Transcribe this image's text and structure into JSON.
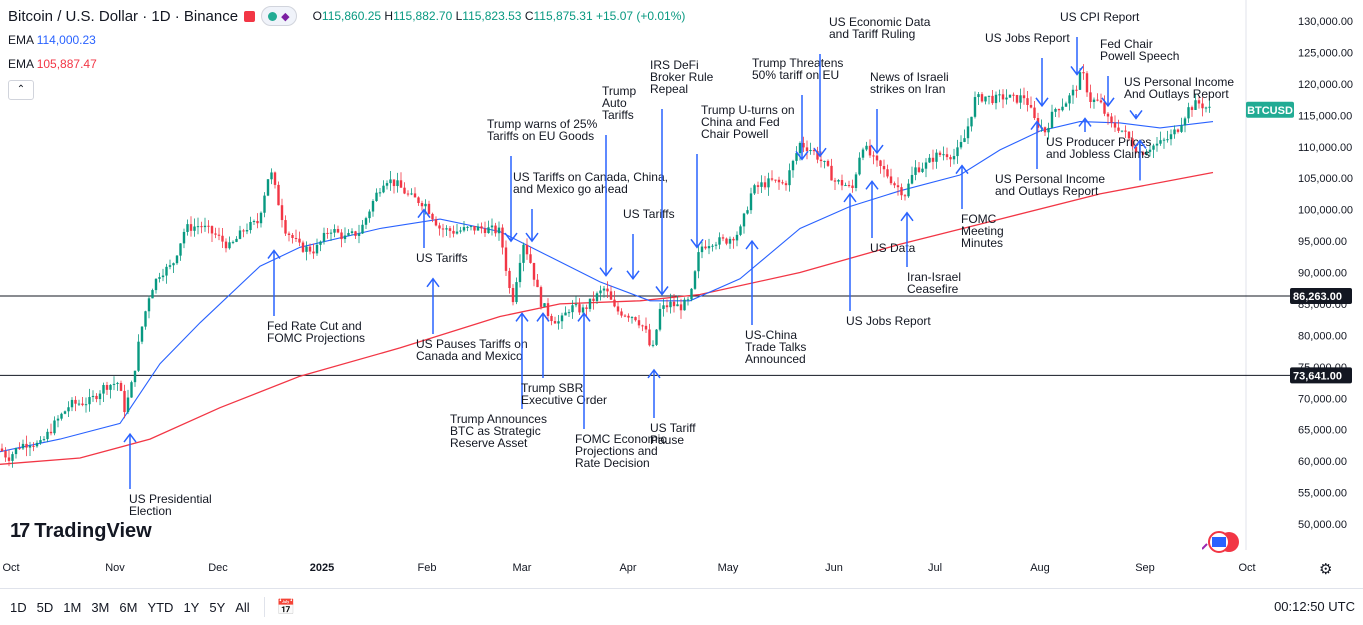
{
  "header": {
    "title": "Bitcoin / U.S. Dollar · 1D · Binance",
    "ohlc": {
      "open_label": "O",
      "open": "115,860.25",
      "high_label": "H",
      "high": "115,882.70",
      "low_label": "L",
      "low": "115,823.53",
      "close_label": "C",
      "close": "115,875.31",
      "change": "+15.07 (+0.01%)"
    }
  },
  "indicators": [
    {
      "label": "EMA",
      "value": "114,000.23",
      "color": "#2962ff"
    },
    {
      "label": "EMA",
      "value": "105,887.47",
      "color": "#f23645"
    }
  ],
  "logo": {
    "text": "TradingView",
    "mark": "17"
  },
  "bottom_bar": {
    "ranges": [
      "1D",
      "5D",
      "1M",
      "3M",
      "6M",
      "YTD",
      "1Y",
      "5Y",
      "All"
    ],
    "time": "00:12:50 UTC"
  },
  "chart_data": {
    "type": "candlestick",
    "symbol": "BTCUSD",
    "x_ticks": [
      "Oct",
      "Nov",
      "Dec",
      "2025",
      "Feb",
      "Mar",
      "Apr",
      "May",
      "Jun",
      "Jul",
      "Aug",
      "Sep",
      "Oct"
    ],
    "y_ticks": [
      "130,000.00",
      "125,000.00",
      "120,000.00",
      "115,000.00",
      "110,000.00",
      "105,000.00",
      "100,000.00",
      "95,000.00",
      "90,000.00",
      "85,000.00",
      "80,000.00",
      "75,000.00",
      "70,000.00",
      "65,000.00",
      "60,000.00",
      "55,000.00",
      "50,000.00"
    ],
    "ylim": [
      46000,
      133000
    ],
    "price_label": {
      "text": "BTCUSD",
      "value": 115875.31,
      "color": "#22ab94"
    },
    "horizontal_lines": [
      {
        "value": 86263,
        "label": "86,263.00"
      },
      {
        "value": 73641,
        "label": "73,641.00"
      }
    ],
    "price_path": [
      [
        0,
        62000
      ],
      [
        8,
        60500
      ],
      [
        20,
        62500
      ],
      [
        30,
        63000
      ],
      [
        40,
        62500
      ],
      [
        55,
        66000
      ],
      [
        70,
        69000
      ],
      [
        90,
        69500
      ],
      [
        105,
        72000
      ],
      [
        118,
        72500
      ],
      [
        125,
        68000
      ],
      [
        133,
        73000
      ],
      [
        140,
        80000
      ],
      [
        150,
        87000
      ],
      [
        160,
        90000
      ],
      [
        172,
        91000
      ],
      [
        185,
        97000
      ],
      [
        200,
        97500
      ],
      [
        215,
        96000
      ],
      [
        230,
        94000
      ],
      [
        245,
        97000
      ],
      [
        258,
        98000
      ],
      [
        270,
        106500
      ],
      [
        285,
        97000
      ],
      [
        300,
        94000
      ],
      [
        315,
        93500
      ],
      [
        330,
        97000
      ],
      [
        345,
        95500
      ],
      [
        360,
        96500
      ],
      [
        375,
        102000
      ],
      [
        385,
        105000
      ],
      [
        397,
        104000
      ],
      [
        410,
        102000
      ],
      [
        425,
        101000
      ],
      [
        440,
        97000
      ],
      [
        455,
        96500
      ],
      [
        470,
        97000
      ],
      [
        485,
        97000
      ],
      [
        500,
        96500
      ],
      [
        512,
        85000
      ],
      [
        523,
        95000
      ],
      [
        530,
        92000
      ],
      [
        540,
        85500
      ],
      [
        550,
        83000
      ],
      [
        560,
        82000
      ],
      [
        570,
        84500
      ],
      [
        583,
        84000
      ],
      [
        595,
        86000
      ],
      [
        605,
        87500
      ],
      [
        615,
        84000
      ],
      [
        625,
        83500
      ],
      [
        635,
        83000
      ],
      [
        645,
        81000
      ],
      [
        652,
        77000
      ],
      [
        660,
        84000
      ],
      [
        670,
        85000
      ],
      [
        680,
        84500
      ],
      [
        690,
        85500
      ],
      [
        700,
        94000
      ],
      [
        712,
        95000
      ],
      [
        725,
        95000
      ],
      [
        740,
        96500
      ],
      [
        752,
        103000
      ],
      [
        762,
        104000
      ],
      [
        772,
        104500
      ],
      [
        785,
        104000
      ],
      [
        800,
        110500
      ],
      [
        812,
        109500
      ],
      [
        825,
        107000
      ],
      [
        835,
        104500
      ],
      [
        845,
        104000
      ],
      [
        852,
        103000
      ],
      [
        862,
        110500
      ],
      [
        875,
        107500
      ],
      [
        885,
        106000
      ],
      [
        895,
        104000
      ],
      [
        905,
        102500
      ],
      [
        915,
        106500
      ],
      [
        925,
        107000
      ],
      [
        935,
        108500
      ],
      [
        945,
        109000
      ],
      [
        955,
        108500
      ],
      [
        965,
        111500
      ],
      [
        975,
        117500
      ],
      [
        985,
        118000
      ],
      [
        995,
        117500
      ],
      [
        1005,
        118000
      ],
      [
        1015,
        117500
      ],
      [
        1025,
        118000
      ],
      [
        1035,
        114000
      ],
      [
        1045,
        112500
      ],
      [
        1055,
        116000
      ],
      [
        1065,
        117000
      ],
      [
        1075,
        119000
      ],
      [
        1082,
        122000
      ],
      [
        1090,
        117500
      ],
      [
        1100,
        117000
      ],
      [
        1110,
        113500
      ],
      [
        1120,
        113000
      ],
      [
        1130,
        111000
      ],
      [
        1140,
        109000
      ],
      [
        1150,
        110000
      ],
      [
        1160,
        110500
      ],
      [
        1170,
        111500
      ],
      [
        1178,
        113000
      ],
      [
        1188,
        116000
      ],
      [
        1198,
        117000
      ],
      [
        1210,
        115900
      ]
    ],
    "ema_fast_path": [
      [
        0,
        61500
      ],
      [
        60,
        63500
      ],
      [
        120,
        66000
      ],
      [
        160,
        75500
      ],
      [
        200,
        82000
      ],
      [
        260,
        91000
      ],
      [
        300,
        94000
      ],
      [
        380,
        97000
      ],
      [
        440,
        98500
      ],
      [
        500,
        96500
      ],
      [
        550,
        92500
      ],
      [
        600,
        88500
      ],
      [
        650,
        85500
      ],
      [
        690,
        85500
      ],
      [
        740,
        89000
      ],
      [
        800,
        97000
      ],
      [
        850,
        100500
      ],
      [
        900,
        103000
      ],
      [
        960,
        105500
      ],
      [
        1000,
        109500
      ],
      [
        1040,
        112500
      ],
      [
        1080,
        114000
      ],
      [
        1120,
        113800
      ],
      [
        1160,
        113000
      ],
      [
        1213,
        114000
      ]
    ],
    "ema_slow_path": [
      [
        0,
        59500
      ],
      [
        80,
        60500
      ],
      [
        150,
        63500
      ],
      [
        220,
        68500
      ],
      [
        300,
        73500
      ],
      [
        400,
        78000
      ],
      [
        500,
        83000
      ],
      [
        560,
        85000
      ],
      [
        640,
        85500
      ],
      [
        700,
        86500
      ],
      [
        800,
        90000
      ],
      [
        900,
        94500
      ],
      [
        1000,
        98500
      ],
      [
        1100,
        102500
      ],
      [
        1213,
        105900
      ]
    ],
    "annotations": [
      {
        "text": "US Presidential Election",
        "lines": [
          "US Presidential",
          "Election"
        ],
        "ax": 130,
        "ay": 64300,
        "at": [
          129,
          503
        ],
        "dir": "up"
      },
      {
        "text": "Fed Rate Cut and FOMC Projections",
        "lines": [
          "Fed Rate Cut and",
          "FOMC Projections"
        ],
        "ax": 274,
        "ay": 93500,
        "at": [
          267,
          330
        ],
        "dir": "up"
      },
      {
        "text": "US Tariffs",
        "lines": [
          "US Tariffs"
        ],
        "ax": 424,
        "ay": 100000,
        "at": [
          416,
          262
        ],
        "dir": "up",
        "above": true
      },
      {
        "text": "US Pauses Tariffs on Canada and Mexico",
        "lines": [
          "US Pauses Tariffs on",
          "Canada and Mexico"
        ],
        "ax": 433,
        "ay": 89000,
        "at": [
          416,
          348
        ],
        "dir": "up"
      },
      {
        "text": "Trump warns of 25% Tariffs on EU Goods",
        "lines": [
          "Trump warns of 25%",
          "Tariffs on EU Goods"
        ],
        "ax": 511,
        "ay": 95000,
        "at": [
          487,
          128
        ],
        "dir": "down"
      },
      {
        "text": "US Tariffs on Canada, China, and Mexico go ahead",
        "lines": [
          "US Tariffs on Canada, China,",
          "and Mexico go ahead"
        ],
        "ax": 532,
        "ay": 95000,
        "at": [
          513,
          181
        ],
        "dir": "down"
      },
      {
        "text": "Trump Announces BTC as Strategic Reserve Asset",
        "lines": [
          "Trump Announces",
          "BTC as Strategic",
          "Reserve Asset"
        ],
        "ax": 522,
        "ay": 83500,
        "at": [
          450,
          423
        ],
        "dir": "up"
      },
      {
        "text": "Trump SBR Executive Order",
        "lines": [
          "Trump SBR",
          "Executive Order"
        ],
        "ax": 543,
        "ay": 83500,
        "at": [
          521,
          392
        ],
        "dir": "up"
      },
      {
        "text": "FOMC Economic Projections and Rate Decision",
        "lines": [
          "FOMC Economic",
          "Projections and",
          "Rate Decision"
        ],
        "ax": 584,
        "ay": 83500,
        "at": [
          575,
          443
        ],
        "dir": "up"
      },
      {
        "text": "Trump Auto Tariffs",
        "lines": [
          "Trump",
          "Auto",
          "Tariffs"
        ],
        "ax": 606,
        "ay": 89500,
        "at": [
          602,
          95
        ],
        "dir": "down"
      },
      {
        "text": "US Tariffs",
        "lines": [
          "US Tariffs"
        ],
        "ax": 633,
        "ay": 89000,
        "at": [
          623,
          218
        ],
        "dir": "down"
      },
      {
        "text": "IRS DeFi Broker Rule Repeal",
        "lines": [
          "IRS DeFi",
          "Broker Rule",
          "Repeal"
        ],
        "ax": 662,
        "ay": 86500,
        "at": [
          650,
          69
        ],
        "dir": "down"
      },
      {
        "text": "US Tariff Pause",
        "lines": [
          "US Tariff",
          "Pause"
        ],
        "ax": 654,
        "ay": 74500,
        "at": [
          650,
          432
        ],
        "dir": "up"
      },
      {
        "text": "Trump U-turns on China and Fed Chair Powell",
        "lines": [
          "Trump U-turns on",
          "China and Fed",
          "Chair Powell"
        ],
        "ax": 697,
        "ay": 94000,
        "at": [
          701,
          114
        ],
        "dir": "down"
      },
      {
        "text": "US-China Trade Talks Announced",
        "lines": [
          "US-China",
          "Trade Talks",
          "Announced"
        ],
        "ax": 752,
        "ay": 95000,
        "at": [
          745,
          339
        ],
        "dir": "up"
      },
      {
        "text": "Trump Threatens 50% tariff on EU",
        "lines": [
          "Trump Threatens",
          "50% tariff on EU"
        ],
        "ax": 802,
        "ay": 108000,
        "at": [
          752,
          67
        ],
        "dir": "down"
      },
      {
        "text": "US Economic Data and Tariff Ruling",
        "lines": [
          "US Economic Data",
          "and Tariff Ruling"
        ],
        "ax": 820,
        "ay": 108500,
        "at": [
          829,
          26
        ],
        "dir": "down"
      },
      {
        "text": "US Jobs Report",
        "lines": [
          "US Jobs Report"
        ],
        "ax": 850,
        "ay": 102500,
        "at": [
          846,
          325
        ],
        "dir": "up",
        "above": true
      },
      {
        "text": "US Data",
        "lines": [
          "US Data"
        ],
        "ax": 872,
        "ay": 104500,
        "at": [
          870,
          252
        ],
        "dir": "up",
        "above": true
      },
      {
        "text": "News of Israeli strikes on Iran",
        "lines": [
          "News of Israeli",
          "strikes on Iran"
        ],
        "ax": 877,
        "ay": 109000,
        "at": [
          870,
          81
        ],
        "dir": "down"
      },
      {
        "text": "Iran-Israel Ceasefire",
        "lines": [
          "Iran-Israel",
          "Ceasefire"
        ],
        "ax": 907,
        "ay": 99500,
        "at": [
          907,
          281
        ],
        "dir": "up"
      },
      {
        "text": "FOMC Meeting Minutes",
        "lines": [
          "FOMC",
          "Meeting",
          "Minutes"
        ],
        "ax": 962,
        "ay": 107000,
        "at": [
          961,
          223
        ],
        "dir": "up",
        "above": true
      },
      {
        "text": "US Jobs Report",
        "lines": [
          "US Jobs Report"
        ],
        "ax": 1042,
        "ay": 116500,
        "at": [
          985,
          42
        ],
        "dir": "down"
      },
      {
        "text": "US Personal Income and Outlays Report",
        "lines": [
          "US Personal Income",
          "and Outlays Report"
        ],
        "ax": 1037,
        "ay": 114000,
        "at": [
          995,
          183
        ],
        "dir": "up",
        "above": true
      },
      {
        "text": "US CPI Report",
        "lines": [
          "US CPI Report"
        ],
        "ax": 1077,
        "ay": 121500,
        "at": [
          1060,
          21
        ],
        "dir": "down"
      },
      {
        "text": "US Producer Prices and Jobless Claims",
        "lines": [
          "US Producer Prices",
          "and Jobless Claims"
        ],
        "ax": 1085,
        "ay": 114500,
        "at": [
          1046,
          146
        ],
        "dir": "up",
        "above": true
      },
      {
        "text": "Fed Chair Powell Speech",
        "lines": [
          "Fed Chair",
          "Powell Speech"
        ],
        "ax": 1108,
        "ay": 116500,
        "at": [
          1100,
          48
        ],
        "dir": "down"
      },
      {
        "text": "US Personal Income And Outlays Report",
        "lines": [
          "US Personal Income",
          "And Outlays Report"
        ],
        "ax": 1136,
        "ay": 114500,
        "at": [
          1124,
          86
        ],
        "dir": "down"
      },
      {
        "text": "",
        "lines": [],
        "ax": 1140,
        "ay": 111000,
        "at": [
          1140,
          130
        ],
        "dir": "up",
        "above": true
      }
    ]
  }
}
